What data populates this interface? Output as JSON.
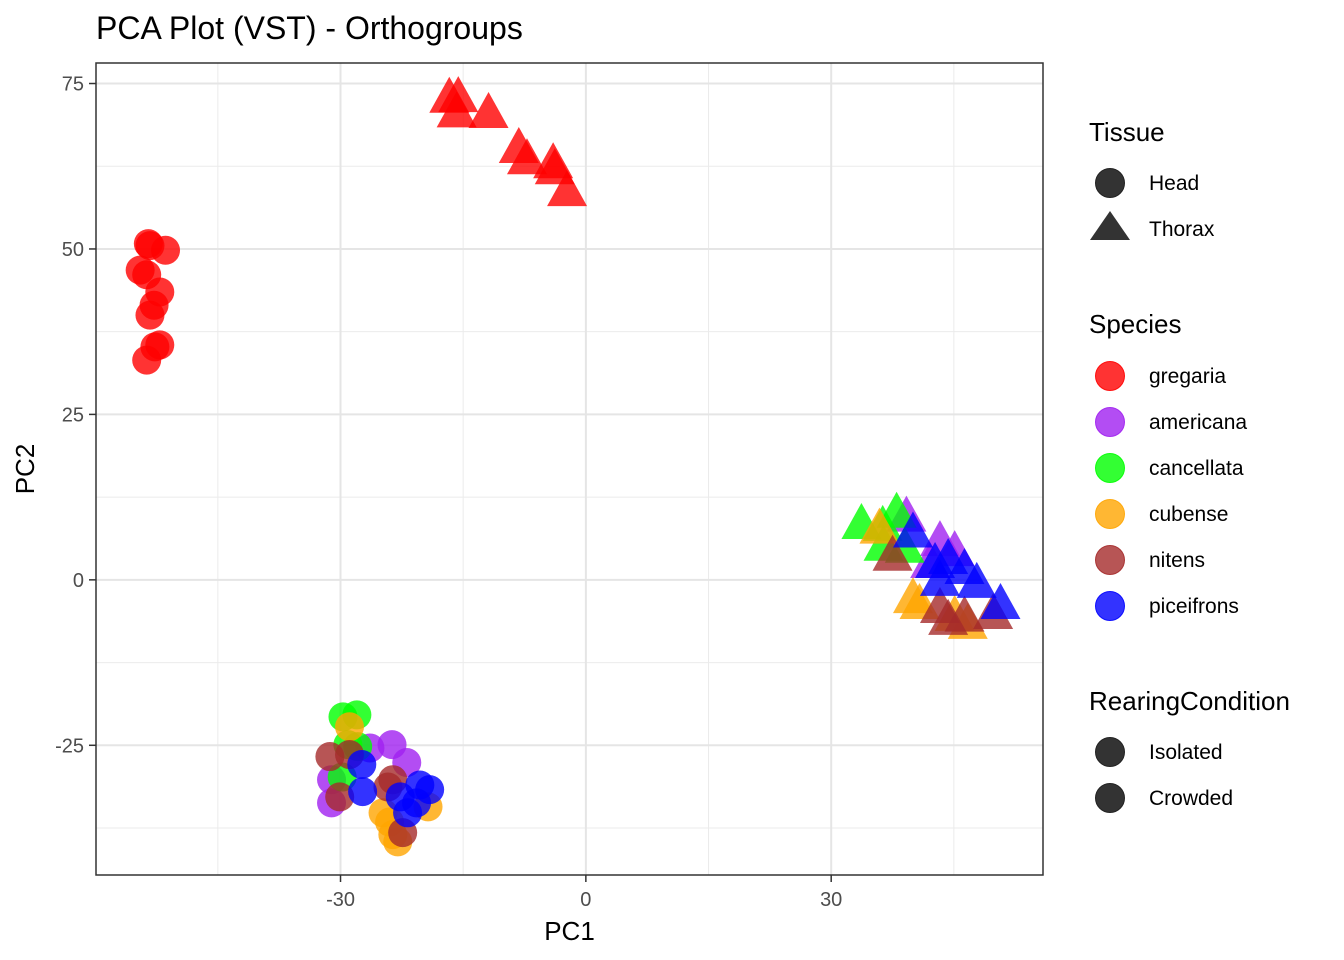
{
  "chart_data": {
    "type": "scatter",
    "title": "PCA Plot (VST) - Orthogroups",
    "xlabel": "PC1",
    "ylabel": "PC2",
    "xlim": [
      -59.9,
      55.9
    ],
    "ylim": [
      -44.6,
      78.1
    ],
    "x_ticks": [
      -30,
      0,
      30
    ],
    "y_ticks": [
      -25,
      0,
      25,
      50,
      75
    ],
    "x_tick_labels": [
      "-30",
      "0",
      "30"
    ],
    "y_tick_labels": [
      "-25",
      "0",
      "25",
      "50",
      "75"
    ],
    "grid": true,
    "point_alpha": 0.8,
    "legend_position": "right",
    "legends": [
      {
        "title": "Tissue",
        "kind": "shape",
        "entries": [
          {
            "label": "Head",
            "shape": "circle"
          },
          {
            "label": "Thorax",
            "shape": "triangle"
          }
        ]
      },
      {
        "title": "Species",
        "kind": "color",
        "entries": [
          {
            "label": "gregaria",
            "color": "#FF0000"
          },
          {
            "label": "americana",
            "color": "#A020F0"
          },
          {
            "label": "cancellata",
            "color": "#00FF00"
          },
          {
            "label": "cubense",
            "color": "#FFA500"
          },
          {
            "label": "nitens",
            "color": "#A52A2A"
          },
          {
            "label": "piceifrons",
            "color": "#0000FF"
          }
        ]
      },
      {
        "title": "RearingCondition",
        "kind": "alpha",
        "entries": [
          {
            "label": "Isolated",
            "shape": "circle"
          },
          {
            "label": "Crowded",
            "shape": "circle"
          }
        ]
      }
    ],
    "series": [
      {
        "name": "gregaria",
        "color": "#FF0000",
        "points": [
          {
            "x": -53.5,
            "y": 50.8,
            "tissue": "Head"
          },
          {
            "x": -53.3,
            "y": 50.5,
            "tissue": "Head"
          },
          {
            "x": -51.4,
            "y": 49.8,
            "tissue": "Head"
          },
          {
            "x": -54.5,
            "y": 46.8,
            "tissue": "Head"
          },
          {
            "x": -53.7,
            "y": 46.1,
            "tissue": "Head"
          },
          {
            "x": -52.1,
            "y": 43.5,
            "tissue": "Head"
          },
          {
            "x": -52.8,
            "y": 41.5,
            "tissue": "Head"
          },
          {
            "x": -53.3,
            "y": 40.0,
            "tissue": "Head"
          },
          {
            "x": -52.1,
            "y": 35.5,
            "tissue": "Head"
          },
          {
            "x": -52.7,
            "y": 35.2,
            "tissue": "Head"
          },
          {
            "x": -53.7,
            "y": 33.2,
            "tissue": "Head"
          },
          {
            "x": -16.7,
            "y": 73.3,
            "tissue": "Thorax"
          },
          {
            "x": -15.6,
            "y": 73.4,
            "tissue": "Thorax"
          },
          {
            "x": -15.8,
            "y": 71.1,
            "tissue": "Thorax"
          },
          {
            "x": -11.9,
            "y": 71.0,
            "tissue": "Thorax"
          },
          {
            "x": -8.2,
            "y": 65.7,
            "tissue": "Thorax"
          },
          {
            "x": -7.2,
            "y": 64.0,
            "tissue": "Thorax"
          },
          {
            "x": -4.0,
            "y": 63.4,
            "tissue": "Thorax"
          },
          {
            "x": -3.8,
            "y": 62.5,
            "tissue": "Thorax"
          },
          {
            "x": -2.3,
            "y": 59.2,
            "tissue": "Thorax"
          }
        ]
      },
      {
        "name": "americana",
        "color": "#A020F0",
        "points": [
          {
            "x": -31.1,
            "y": -30.2,
            "tissue": "Head"
          },
          {
            "x": -31.1,
            "y": -33.7,
            "tissue": "Head"
          },
          {
            "x": -26.4,
            "y": -25.4,
            "tissue": "Head"
          },
          {
            "x": -23.7,
            "y": -24.9,
            "tissue": "Head"
          },
          {
            "x": -21.9,
            "y": -27.6,
            "tissue": "Head"
          },
          {
            "x": 39.2,
            "y": 10.0,
            "tissue": "Thorax"
          },
          {
            "x": 43.3,
            "y": 6.3,
            "tissue": "Thorax"
          },
          {
            "x": 45.1,
            "y": 4.8,
            "tissue": "Thorax"
          },
          {
            "x": 42.1,
            "y": 3.0,
            "tissue": "Thorax"
          }
        ]
      },
      {
        "name": "cancellata",
        "color": "#00FF00",
        "points": [
          {
            "x": -29.7,
            "y": -20.7,
            "tissue": "Head"
          },
          {
            "x": -28.0,
            "y": -20.4,
            "tissue": "Head"
          },
          {
            "x": -29.1,
            "y": -24.9,
            "tissue": "Head"
          },
          {
            "x": -27.9,
            "y": -25.2,
            "tissue": "Head"
          },
          {
            "x": -29.8,
            "y": -29.8,
            "tissue": "Head"
          },
          {
            "x": 33.7,
            "y": 8.9,
            "tissue": "Thorax"
          },
          {
            "x": 38.0,
            "y": 10.6,
            "tissue": "Thorax"
          },
          {
            "x": 36.3,
            "y": 8.6,
            "tissue": "Thorax"
          },
          {
            "x": 36.4,
            "y": 5.6,
            "tissue": "Thorax"
          },
          {
            "x": 39.0,
            "y": 5.3,
            "tissue": "Thorax"
          }
        ]
      },
      {
        "name": "cubense",
        "color": "#FFA500",
        "points": [
          {
            "x": -28.9,
            "y": -22.2,
            "tissue": "Head"
          },
          {
            "x": -24.8,
            "y": -35.2,
            "tissue": "Head"
          },
          {
            "x": -24.0,
            "y": -36.6,
            "tissue": "Head"
          },
          {
            "x": -23.6,
            "y": -38.5,
            "tissue": "Head"
          },
          {
            "x": -23.0,
            "y": -39.6,
            "tissue": "Head"
          },
          {
            "x": -19.3,
            "y": -34.3,
            "tissue": "Head"
          },
          {
            "x": 35.9,
            "y": 8.2,
            "tissue": "Thorax"
          },
          {
            "x": 40.0,
            "y": -2.3,
            "tissue": "Thorax"
          },
          {
            "x": 40.8,
            "y": -3.2,
            "tissue": "Thorax"
          },
          {
            "x": 45.1,
            "y": -5.0,
            "tissue": "Thorax"
          },
          {
            "x": 46.7,
            "y": -6.2,
            "tissue": "Thorax"
          }
        ]
      },
      {
        "name": "nitens",
        "color": "#A52A2A",
        "points": [
          {
            "x": -31.3,
            "y": -26.7,
            "tissue": "Head"
          },
          {
            "x": -28.9,
            "y": -26.4,
            "tissue": "Head"
          },
          {
            "x": -30.1,
            "y": -32.8,
            "tissue": "Head"
          },
          {
            "x": -24.2,
            "y": -31.3,
            "tissue": "Head"
          },
          {
            "x": -23.6,
            "y": -30.2,
            "tissue": "Head"
          },
          {
            "x": -22.4,
            "y": -38.2,
            "tissue": "Head"
          },
          {
            "x": 37.5,
            "y": 4.1,
            "tissue": "Thorax"
          },
          {
            "x": 43.3,
            "y": -3.8,
            "tissue": "Thorax"
          },
          {
            "x": 44.3,
            "y": -5.6,
            "tissue": "Thorax"
          },
          {
            "x": 46.3,
            "y": -5.1,
            "tissue": "Thorax"
          },
          {
            "x": 49.8,
            "y": -4.7,
            "tissue": "Thorax"
          }
        ]
      },
      {
        "name": "piceifrons",
        "color": "#0000FF",
        "points": [
          {
            "x": -27.4,
            "y": -27.9,
            "tissue": "Head"
          },
          {
            "x": -27.3,
            "y": -32.0,
            "tissue": "Head"
          },
          {
            "x": -22.7,
            "y": -32.8,
            "tissue": "Head"
          },
          {
            "x": -21.8,
            "y": -35.2,
            "tissue": "Head"
          },
          {
            "x": -20.7,
            "y": -33.7,
            "tissue": "Head"
          },
          {
            "x": -20.3,
            "y": -31.0,
            "tissue": "Head"
          },
          {
            "x": -19.1,
            "y": -31.7,
            "tissue": "Head"
          },
          {
            "x": 40.0,
            "y": 7.6,
            "tissue": "Thorax"
          },
          {
            "x": 42.7,
            "y": 3.0,
            "tissue": "Thorax"
          },
          {
            "x": 44.3,
            "y": 3.6,
            "tissue": "Thorax"
          },
          {
            "x": 43.3,
            "y": 0.3,
            "tissue": "Thorax"
          },
          {
            "x": 46.3,
            "y": 2.1,
            "tissue": "Thorax"
          },
          {
            "x": 47.8,
            "y": 0.0,
            "tissue": "Thorax"
          },
          {
            "x": 50.7,
            "y": -3.2,
            "tissue": "Thorax"
          }
        ]
      }
    ]
  }
}
